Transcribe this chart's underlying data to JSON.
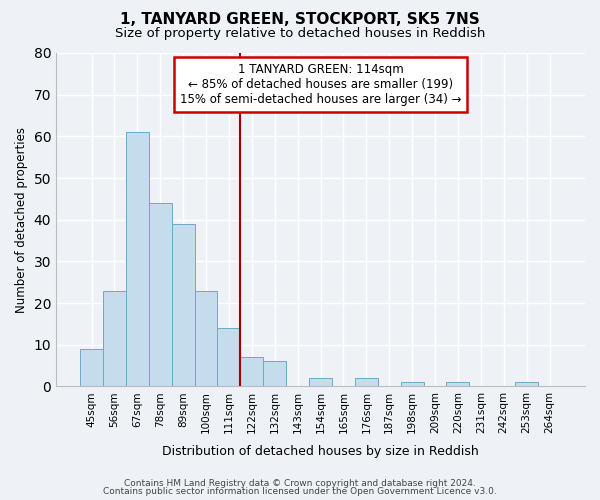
{
  "title": "1, TANYARD GREEN, STOCKPORT, SK5 7NS",
  "subtitle": "Size of property relative to detached houses in Reddish",
  "xlabel": "Distribution of detached houses by size in Reddish",
  "ylabel": "Number of detached properties",
  "bar_color": "#c5dced",
  "bar_edge_color": "#6aaac8",
  "background_color": "#eef2f7",
  "grid_color": "#ffffff",
  "bin_labels": [
    "45sqm",
    "56sqm",
    "67sqm",
    "78sqm",
    "89sqm",
    "100sqm",
    "111sqm",
    "122sqm",
    "132sqm",
    "143sqm",
    "154sqm",
    "165sqm",
    "176sqm",
    "187sqm",
    "198sqm",
    "209sqm",
    "220sqm",
    "231sqm",
    "242sqm",
    "253sqm",
    "264sqm"
  ],
  "bar_heights": [
    9,
    23,
    61,
    44,
    39,
    23,
    14,
    7,
    6,
    0,
    2,
    0,
    2,
    0,
    1,
    0,
    1,
    0,
    0,
    1,
    0
  ],
  "vline_x": 7.0,
  "vline_color": "#aa0000",
  "annotation_title": "1 TANYARD GREEN: 114sqm",
  "annotation_line1": "← 85% of detached houses are smaller (199)",
  "annotation_line2": "15% of semi-detached houses are larger (34) →",
  "annotation_box_color": "#ffffff",
  "annotation_box_edge": "#cc0000",
  "ylim": [
    0,
    80
  ],
  "yticks": [
    0,
    10,
    20,
    30,
    40,
    50,
    60,
    70,
    80
  ],
  "footer1": "Contains HM Land Registry data © Crown copyright and database right 2024.",
  "footer2": "Contains public sector information licensed under the Open Government Licence v3.0."
}
